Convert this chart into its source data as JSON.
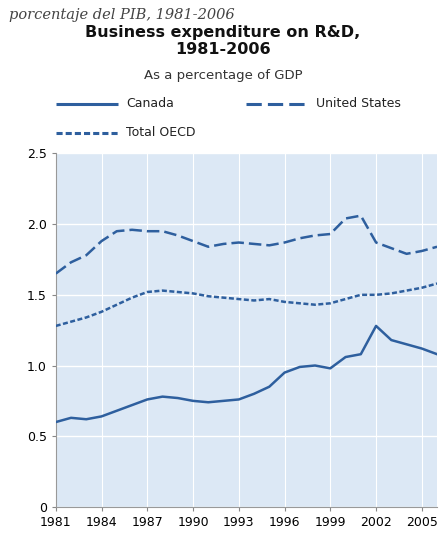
{
  "title": "Business expenditure on R&D,\n1981-2006",
  "subtitle": "As a percentage of GDP",
  "suptitle": "porcentaje del PIB, 1981-2006",
  "years": [
    1981,
    1982,
    1983,
    1984,
    1985,
    1986,
    1987,
    1988,
    1989,
    1990,
    1991,
    1992,
    1993,
    1994,
    1995,
    1996,
    1997,
    1998,
    1999,
    2000,
    2001,
    2002,
    2003,
    2004,
    2005,
    2006
  ],
  "canada": [
    0.6,
    0.63,
    0.62,
    0.64,
    0.68,
    0.72,
    0.76,
    0.78,
    0.77,
    0.75,
    0.74,
    0.75,
    0.76,
    0.8,
    0.85,
    0.95,
    0.99,
    1.0,
    0.98,
    1.06,
    1.08,
    1.28,
    1.18,
    1.15,
    1.12,
    1.08
  ],
  "us": [
    1.65,
    1.73,
    1.78,
    1.88,
    1.95,
    1.96,
    1.95,
    1.95,
    1.92,
    1.88,
    1.84,
    1.86,
    1.87,
    1.86,
    1.85,
    1.87,
    1.9,
    1.92,
    1.93,
    2.04,
    2.06,
    1.87,
    1.83,
    1.79,
    1.81,
    1.84
  ],
  "oecd": [
    1.28,
    1.31,
    1.34,
    1.38,
    1.43,
    1.48,
    1.52,
    1.53,
    1.52,
    1.51,
    1.49,
    1.48,
    1.47,
    1.46,
    1.47,
    1.45,
    1.44,
    1.43,
    1.44,
    1.47,
    1.5,
    1.5,
    1.51,
    1.53,
    1.55,
    1.58
  ],
  "line_color": "#2E5F9E",
  "bg_color": "#dce8f5",
  "legend_bg": "#e8e8e8",
  "ylim": [
    0,
    2.5
  ],
  "yticks": [
    0,
    0.5,
    1.0,
    1.5,
    2.0,
    2.5
  ],
  "xticks": [
    1981,
    1984,
    1987,
    1990,
    1993,
    1996,
    1999,
    2002,
    2005
  ],
  "ytick_labels": [
    "0",
    "0.5",
    "1.0",
    "1.5",
    "2.0",
    "2.5"
  ]
}
